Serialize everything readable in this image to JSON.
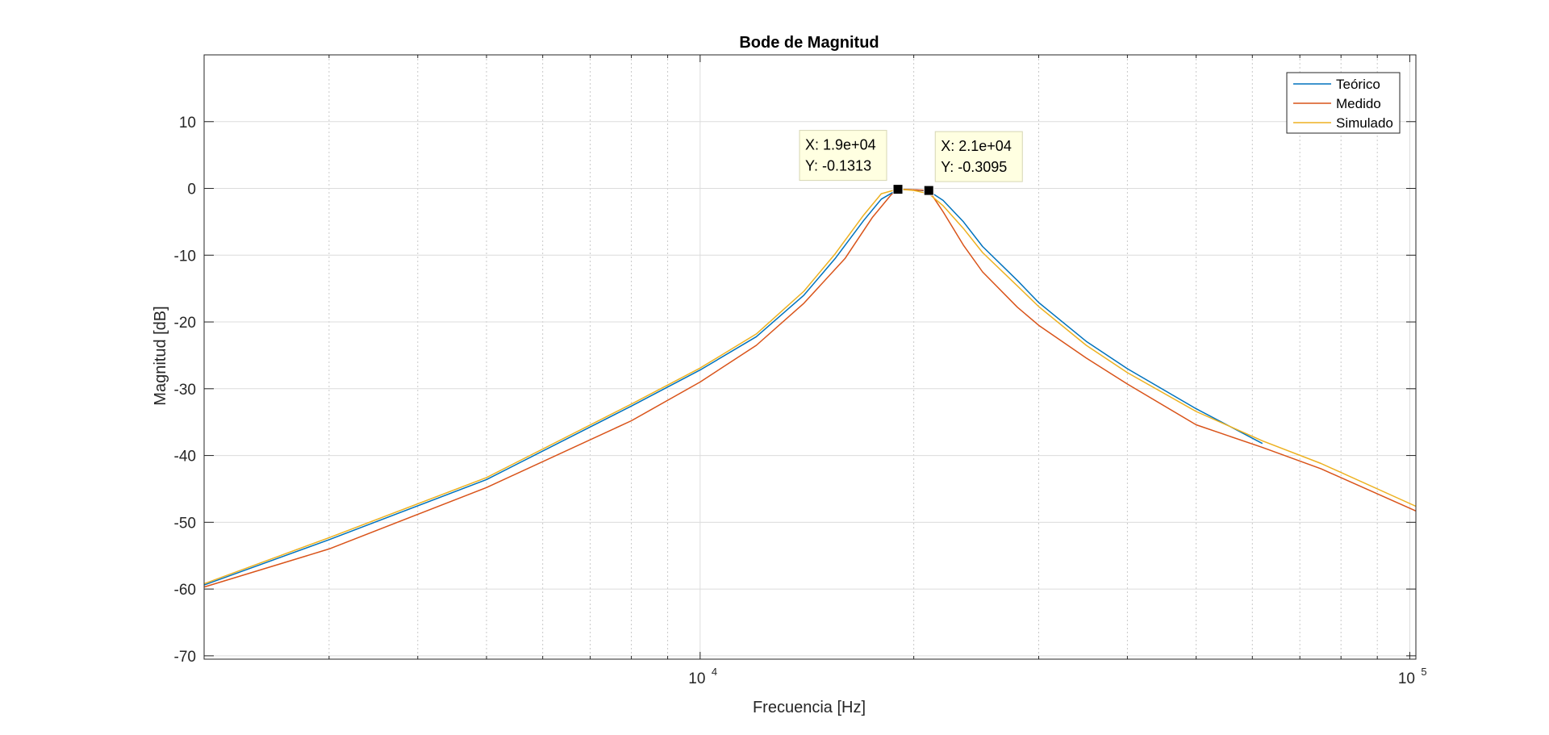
{
  "chart_data": {
    "type": "line",
    "title": "Bode de Magnitud",
    "xlabel": "Frecuencia [Hz]",
    "ylabel": "Magnitud [dB]",
    "xscale": "log",
    "xlim": [
      2000,
      102000
    ],
    "ylim": [
      -70.5,
      20
    ],
    "grid": true,
    "yticks": [
      "-70",
      "-60",
      "-50",
      "-40",
      "-30",
      "-20",
      "-10",
      "0",
      "10"
    ],
    "xticks": [
      {
        "base": "10",
        "exp": "4",
        "value": 10000
      },
      {
        "base": "10",
        "exp": "5",
        "value": 100000
      }
    ],
    "legend_position": "top-right",
    "series": [
      {
        "name": "Teórico",
        "color": "#0072BD",
        "points": [
          [
            2000,
            -59.4
          ],
          [
            3000,
            -52.6
          ],
          [
            5000,
            -43.6
          ],
          [
            8000,
            -32.6
          ],
          [
            10000,
            -27.2
          ],
          [
            12000,
            -22.2
          ],
          [
            14000,
            -16.0
          ],
          [
            15500,
            -10.5
          ],
          [
            17000,
            -4.8
          ],
          [
            18000,
            -1.6
          ],
          [
            19000,
            -0.15
          ],
          [
            20000,
            -0.2
          ],
          [
            21000,
            -0.4
          ],
          [
            22000,
            -1.8
          ],
          [
            23500,
            -5.0
          ],
          [
            25000,
            -8.7
          ],
          [
            28000,
            -13.8
          ],
          [
            30000,
            -17.1
          ],
          [
            35000,
            -22.9
          ],
          [
            40000,
            -27.0
          ],
          [
            50000,
            -33.0
          ],
          [
            62000,
            -38.2
          ]
        ]
      },
      {
        "name": "Medido",
        "color": "#D95319",
        "points": [
          [
            2000,
            -59.7
          ],
          [
            3000,
            -54.0
          ],
          [
            5000,
            -44.8
          ],
          [
            8000,
            -34.8
          ],
          [
            10000,
            -29.0
          ],
          [
            12000,
            -23.5
          ],
          [
            14000,
            -17.2
          ],
          [
            16000,
            -10.5
          ],
          [
            17500,
            -4.3
          ],
          [
            18600,
            -0.9
          ],
          [
            19200,
            -0.13
          ],
          [
            21000,
            -0.31
          ],
          [
            22000,
            -3.5
          ],
          [
            23500,
            -8.5
          ],
          [
            25000,
            -12.5
          ],
          [
            28000,
            -17.8
          ],
          [
            30000,
            -20.5
          ],
          [
            35000,
            -25.4
          ],
          [
            40000,
            -29.3
          ],
          [
            50000,
            -35.4
          ],
          [
            62000,
            -38.8
          ],
          [
            75000,
            -42.0
          ],
          [
            102000,
            -48.3
          ]
        ]
      },
      {
        "name": "Simulado",
        "color": "#EDB120",
        "points": [
          [
            2000,
            -59.2
          ],
          [
            3000,
            -52.3
          ],
          [
            5000,
            -43.3
          ],
          [
            8000,
            -32.3
          ],
          [
            10000,
            -26.9
          ],
          [
            12000,
            -21.8
          ],
          [
            14000,
            -15.4
          ],
          [
            15500,
            -9.8
          ],
          [
            17000,
            -4.0
          ],
          [
            18000,
            -0.8
          ],
          [
            19000,
            -0.1
          ],
          [
            20000,
            -0.3
          ],
          [
            21000,
            -0.8
          ],
          [
            22000,
            -2.6
          ],
          [
            23500,
            -6.0
          ],
          [
            25000,
            -9.6
          ],
          [
            28000,
            -14.6
          ],
          [
            30000,
            -17.7
          ],
          [
            35000,
            -23.5
          ],
          [
            40000,
            -27.6
          ],
          [
            50000,
            -33.4
          ],
          [
            62000,
            -37.8
          ],
          [
            75000,
            -41.2
          ],
          [
            102000,
            -47.6
          ]
        ]
      }
    ],
    "datatips": [
      {
        "x_text": "X: 1.9e+04",
        "y_text": "Y: -0.1313",
        "x": 19000,
        "y": -0.1313
      },
      {
        "x_text": "X: 2.1e+04",
        "y_text": "Y: -0.3095",
        "x": 21000,
        "y": -0.3095
      }
    ]
  }
}
